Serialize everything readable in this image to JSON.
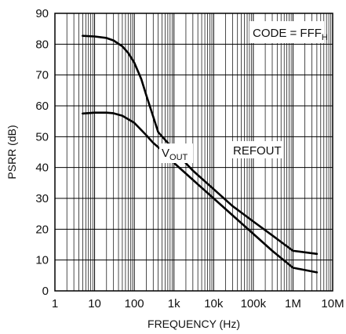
{
  "chart_data": {
    "type": "line",
    "xlabel": "FREQUENCY (Hz)",
    "ylabel": "PSRR (dB)",
    "x_scale": "log",
    "xlim": [
      1,
      10000000
    ],
    "ylim": [
      0,
      90
    ],
    "grid": true,
    "x_ticks": [
      1,
      10,
      100,
      1000,
      10000,
      100000,
      1000000,
      10000000
    ],
    "x_tick_labels": [
      "1",
      "10",
      "100",
      "1k",
      "10k",
      "100k",
      "1M",
      "10M"
    ],
    "y_ticks": [
      0,
      10,
      20,
      30,
      40,
      50,
      60,
      70,
      80,
      90
    ],
    "y_tick_labels": [
      "0",
      "10",
      "20",
      "30",
      "40",
      "50",
      "60",
      "70",
      "80",
      "90"
    ],
    "series": [
      {
        "name": "REFOUT",
        "color": "#000000",
        "x": [
          5,
          10,
          20,
          30,
          50,
          70,
          100,
          150,
          200,
          300,
          400,
          700,
          1000,
          3000,
          10000,
          30000,
          100000,
          300000,
          1000000,
          4000000
        ],
        "y": [
          82.7,
          82.5,
          82,
          81.2,
          79.3,
          77.2,
          74,
          68.7,
          63.5,
          56.5,
          51.5,
          48,
          45.5,
          39,
          33,
          27.5,
          22.5,
          18,
          13,
          12
        ]
      },
      {
        "name": "V_OUT",
        "color": "#000000",
        "x": [
          5,
          10,
          20,
          30,
          50,
          100,
          200,
          300,
          500,
          1000,
          3000,
          10000,
          30000,
          100000,
          300000,
          1000000,
          4000000
        ],
        "y": [
          57.5,
          57.8,
          57.8,
          57.6,
          56.8,
          54.5,
          50.5,
          48,
          45.5,
          41.5,
          36,
          30,
          24.5,
          18.5,
          13,
          7.5,
          6
        ]
      }
    ],
    "annotations": {
      "code": {
        "text": "CODE = FFF",
        "sub": "H"
      },
      "vout": {
        "text": "V",
        "sub": "OUT"
      },
      "refout": {
        "text": "REFOUT"
      }
    }
  }
}
